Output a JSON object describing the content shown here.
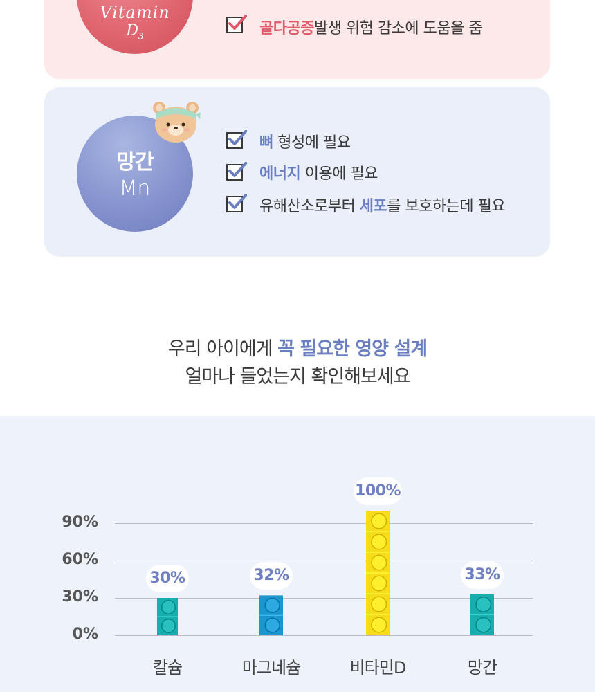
{
  "vitamin_d": {
    "name_line1": "Vitamin",
    "name_line2": "D",
    "name_sub": "3",
    "items": [
      {
        "highlight": "골다공증",
        "rest": "발생 위험 감소에 도움을 줌"
      }
    ]
  },
  "manganese": {
    "name": "망간",
    "symbol": "Mn",
    "items": [
      {
        "pre": "",
        "highlight": "뼈",
        "post": " 형성에 필요"
      },
      {
        "pre": "",
        "highlight": "에너지",
        "post": " 이용에 필요"
      },
      {
        "pre": "유해산소로부터 ",
        "highlight": "세포",
        "post": "를 보호하는데 필요"
      }
    ]
  },
  "headline": {
    "line1_pre": "우리 아이에게 ",
    "line1_highlight": "꼭 필요한 영양 설계",
    "line2": "얼마나 들었는지 확인해보세요"
  },
  "colors": {
    "teal": "#17aeae",
    "blue": "#1b97cf",
    "yellow": "#f7dc1a",
    "accent_blue": "#6b7fc0",
    "accent_pink": "#e05a6a"
  },
  "chart_data": {
    "type": "bar",
    "categories": [
      "칼슘",
      "마그네슘",
      "비타민D",
      "망간"
    ],
    "values": [
      30,
      32,
      100,
      33
    ],
    "value_labels": [
      "30%",
      "32%",
      "100%",
      "33%"
    ],
    "yticks": [
      "0%",
      "30%",
      "60%",
      "90%"
    ],
    "ylim": [
      0,
      120
    ],
    "grid": true,
    "bar_colors": [
      "teal",
      "blue",
      "yellow",
      "teal"
    ]
  }
}
